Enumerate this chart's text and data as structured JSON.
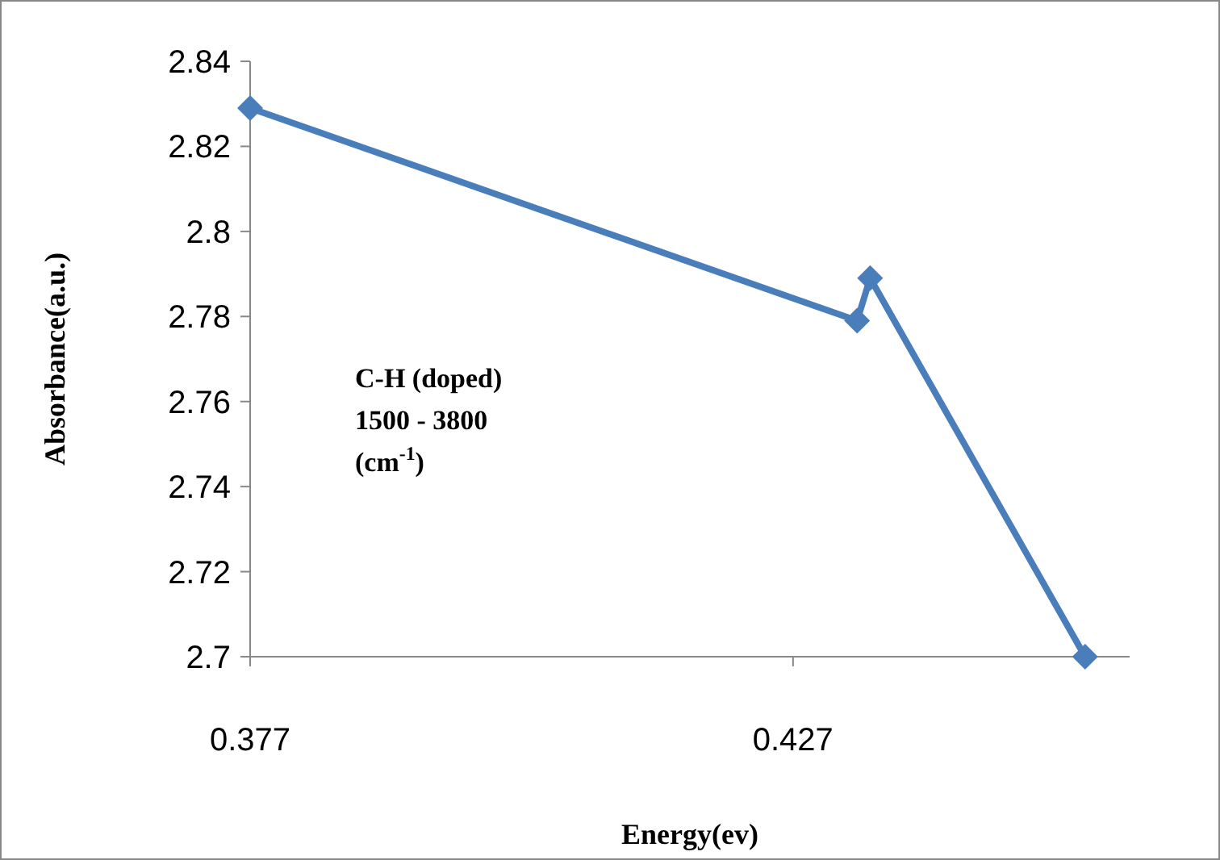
{
  "chart_data": {
    "type": "line",
    "xlabel": "Energy(ev)",
    "ylabel": "Absorbance(a.u.)",
    "x": [
      0.377,
      0.4329,
      0.4341,
      0.4539
    ],
    "series": [
      {
        "color": "#4a7ebb",
        "values": [
          2.829,
          2.779,
          2.789,
          2.7
        ]
      }
    ],
    "xlim": [
      0.377,
      0.458
    ],
    "xticks": [
      0.377,
      0.427
    ],
    "ylim": [
      2.7,
      2.84
    ],
    "yticks": [
      2.7,
      2.72,
      2.74,
      2.76,
      2.78,
      2.8,
      2.82,
      2.84
    ],
    "marker": "diamond",
    "line_style": "solid",
    "grid": false,
    "annotations": [
      "C-H (doped)\n1500 - 3800\n(cm$^{-1}$)"
    ]
  }
}
